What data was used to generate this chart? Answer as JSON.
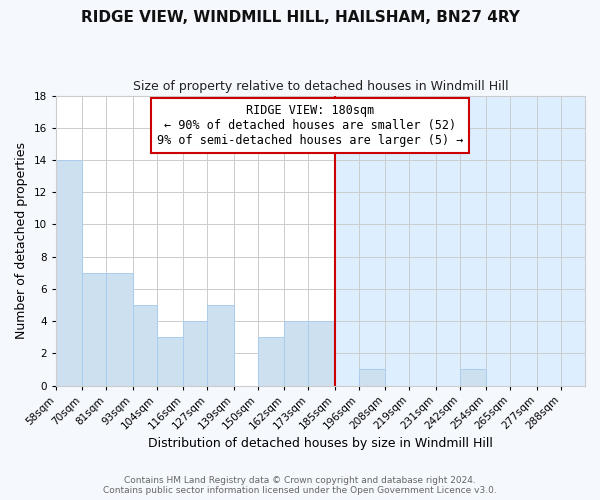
{
  "title": "RIDGE VIEW, WINDMILL HILL, HAILSHAM, BN27 4RY",
  "subtitle": "Size of property relative to detached houses in Windmill Hill",
  "xlabel": "Distribution of detached houses by size in Windmill Hill",
  "ylabel": "Number of detached properties",
  "footer_line1": "Contains HM Land Registry data © Crown copyright and database right 2024.",
  "footer_line2": "Contains public sector information licensed under the Open Government Licence v3.0.",
  "bin_labels": [
    "58sqm",
    "70sqm",
    "81sqm",
    "93sqm",
    "104sqm",
    "116sqm",
    "127sqm",
    "139sqm",
    "150sqm",
    "162sqm",
    "173sqm",
    "185sqm",
    "196sqm",
    "208sqm",
    "219sqm",
    "231sqm",
    "242sqm",
    "254sqm",
    "265sqm",
    "277sqm",
    "288sqm"
  ],
  "bin_edges": [
    58,
    70,
    81,
    93,
    104,
    116,
    127,
    139,
    150,
    162,
    173,
    185,
    196,
    208,
    219,
    231,
    242,
    254,
    265,
    277,
    288
  ],
  "counts": [
    14,
    7,
    7,
    5,
    3,
    4,
    5,
    0,
    3,
    4,
    4,
    0,
    1,
    0,
    0,
    0,
    1,
    0,
    0,
    0,
    0
  ],
  "bar_color": "#cce0f0",
  "bar_edge_color": "#aaccee",
  "grid_color": "#cccccc",
  "vline_x": 185,
  "vline_color": "#cc0000",
  "annotation_title": "RIDGE VIEW: 180sqm",
  "annotation_line1": "← 90% of detached houses are smaller (52)",
  "annotation_line2": "9% of semi-detached houses are larger (5) →",
  "annotation_box_color": "#ffffff",
  "annotation_box_edge": "#cc0000",
  "right_bg_color": "#ddeeff",
  "ylim": [
    0,
    18
  ],
  "yticks": [
    0,
    2,
    4,
    6,
    8,
    10,
    12,
    14,
    16,
    18
  ],
  "background_color": "#f5f8fc",
  "title_fontsize": 11,
  "subtitle_fontsize": 9,
  "axis_label_fontsize": 9,
  "tick_fontsize": 7.5,
  "footer_fontsize": 6.5
}
